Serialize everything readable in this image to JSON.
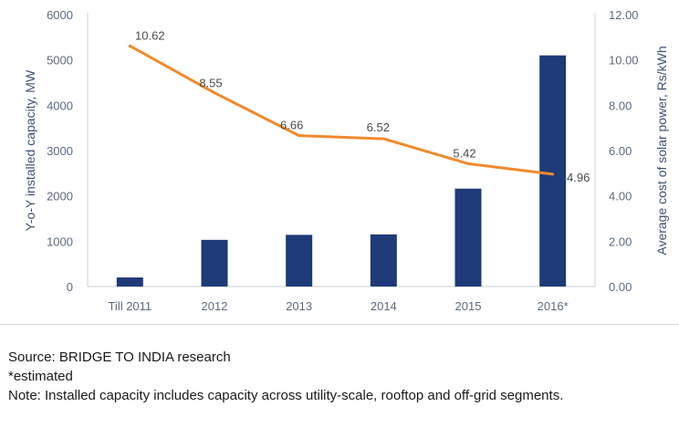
{
  "chart_data": {
    "type": "bar",
    "categories": [
      "Till 2011",
      "2012",
      "2013",
      "2014",
      "2015",
      "2016*"
    ],
    "series": [
      {
        "name": "Y-o-Y installed capacity, MW",
        "type": "bar",
        "axis": "left",
        "values": [
          200,
          1030,
          1140,
          1150,
          2160,
          5100
        ]
      },
      {
        "name": "Average cost of solar power, Rs/kWh",
        "type": "line",
        "axis": "right",
        "values": [
          10.62,
          8.55,
          6.66,
          6.52,
          5.42,
          4.96
        ],
        "labels": [
          "10.62",
          "8.55",
          "6.66",
          "6.52",
          "5.42",
          "4.96"
        ]
      }
    ],
    "ylabel": "Y-o-Y installed capacity, MW",
    "ylabel_right": "Average cost of solar power, Rs/kWh",
    "ylim": [
      0,
      6000
    ],
    "ylim_right": [
      0,
      12
    ],
    "yticks": [
      "0",
      "1000",
      "2000",
      "3000",
      "4000",
      "5000",
      "6000"
    ],
    "yticks_right": [
      "0.00",
      "2.00",
      "4.00",
      "6.00",
      "8.00",
      "10.00",
      "12.00"
    ],
    "grid": false,
    "colors": {
      "bar": "#1e3a78",
      "line": "#f08a2c",
      "axis": "#c9d0d8"
    }
  },
  "notes": {
    "source": "Source: BRIDGE TO INDIA research",
    "estimated": "*estimated",
    "note": "Note: Installed capacity includes capacity across utility-scale, rooftop and off-grid segments."
  }
}
